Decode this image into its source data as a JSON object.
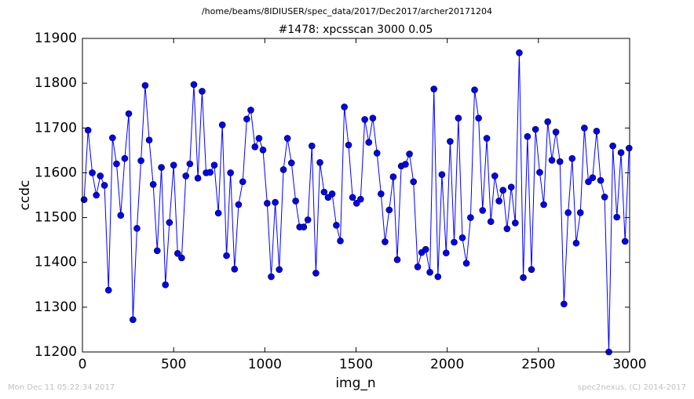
{
  "chart_data": {
    "type": "line",
    "suptitle": "/home/beams/8IDIUSER/spec_data/2017/Dec2017/archer20171204",
    "title": "#1478: xpcsscan 3000 0.05",
    "xlabel": "img_n",
    "ylabel": "ccdc",
    "footer_left": "Mon Dec 11 05:22:34 2017",
    "footer_right": "spec2nexus, (C) 2014-2017",
    "xlim": [
      0,
      3000
    ],
    "xticks": [
      0,
      500,
      1000,
      1500,
      2000,
      2500,
      3000
    ],
    "ylim": [
      11200,
      11900
    ],
    "yticks": [
      11200,
      11300,
      11400,
      11500,
      11600,
      11700,
      11800,
      11900
    ],
    "x": [
      9,
      31,
      54,
      76,
      98,
      121,
      143,
      165,
      187,
      210,
      232,
      254,
      277,
      299,
      321,
      344,
      366,
      388,
      410,
      433,
      455,
      477,
      500,
      522,
      544,
      567,
      589,
      611,
      633,
      656,
      678,
      700,
      723,
      745,
      767,
      790,
      812,
      834,
      856,
      879,
      901,
      923,
      946,
      968,
      990,
      1013,
      1035,
      1057,
      1079,
      1102,
      1124,
      1146,
      1169,
      1191,
      1213,
      1236,
      1258,
      1280,
      1302,
      1325,
      1347,
      1369,
      1392,
      1414,
      1436,
      1459,
      1481,
      1503,
      1525,
      1548,
      1570,
      1592,
      1615,
      1637,
      1659,
      1682,
      1704,
      1726,
      1748,
      1771,
      1793,
      1815,
      1838,
      1860,
      1882,
      1905,
      1927,
      1949,
      1971,
      1994,
      2016,
      2038,
      2061,
      2083,
      2105,
      2128,
      2150,
      2172,
      2194,
      2217,
      2239,
      2261,
      2284,
      2306,
      2328,
      2351,
      2373,
      2395,
      2417,
      2440,
      2462,
      2484,
      2507,
      2529,
      2551,
      2574,
      2596,
      2618,
      2640,
      2663,
      2685,
      2707,
      2730,
      2752,
      2774,
      2797,
      2819,
      2841,
      2863,
      2886,
      2908,
      2930,
      2953,
      2975,
      2997
    ],
    "series": [
      {
        "color": "#0000ff",
        "values": [
          11540,
          11695,
          11600,
          11550,
          11593,
          11572,
          11338,
          11678,
          11620,
          11505,
          11632,
          11732,
          11272,
          11476,
          11627,
          11795,
          11673,
          11574,
          11426,
          11612,
          11350,
          11489,
          11617,
          11420,
          11410,
          11593,
          11620,
          11797,
          11588,
          11782,
          11600,
          11601,
          11617,
          11510,
          11707,
          11415,
          11600,
          11385,
          11529,
          11580,
          11720,
          11740,
          11658,
          11677,
          11651,
          11532,
          11368,
          11534,
          11384,
          11607,
          11677,
          11622,
          11537,
          11479,
          11479,
          11495,
          11660,
          11376,
          11623,
          11557,
          11545,
          11553,
          11483,
          11448,
          11747,
          11662,
          11545,
          11532,
          11541,
          11719,
          11668,
          11722,
          11644,
          11553,
          11446,
          11517,
          11591,
          11406,
          11615,
          11619,
          11642,
          11580,
          11390,
          11422,
          11429,
          11378,
          11787,
          11368,
          11596,
          11421,
          11670,
          11445,
          11722,
          11455,
          11398,
          11500,
          11785,
          11722,
          11516,
          11677,
          11491,
          11593,
          11537,
          11561,
          11475,
          11568,
          11488,
          11868,
          11366,
          11681,
          11384,
          11697,
          11601,
          11529,
          11714,
          11628,
          11691,
          11625,
          11307,
          11511,
          11632,
          11443,
          11511,
          11700,
          11580,
          11589,
          11693,
          11583,
          11546,
          11200,
          11660,
          11501,
          11645,
          11447,
          11655
        ]
      }
    ]
  }
}
